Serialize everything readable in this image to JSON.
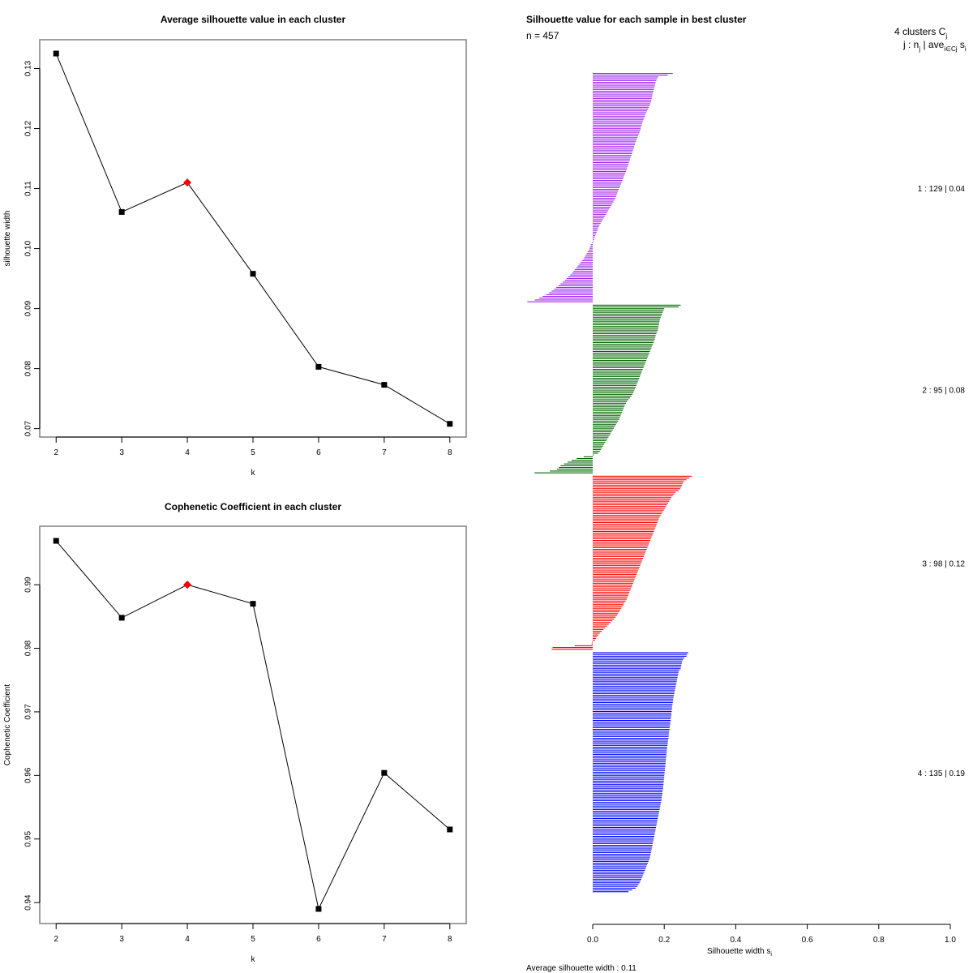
{
  "chart_data": [
    {
      "type": "line",
      "title": "Average silhouette value in each cluster",
      "xlabel": "k",
      "ylabel": "silhouette width",
      "x": [
        2,
        3,
        4,
        5,
        6,
        7,
        8
      ],
      "values": [
        0.1325,
        0.1061,
        0.111,
        0.0958,
        0.0803,
        0.0773,
        0.0708
      ],
      "highlight_k": 4,
      "highlight_color": "#FF0000",
      "marker_color": "#000000",
      "xticks": [
        "2",
        "3",
        "4",
        "5",
        "6",
        "7",
        "8"
      ],
      "yticks": [
        "0.07",
        "0.08",
        "0.09",
        "0.10",
        "0.11",
        "0.12",
        "0.13"
      ],
      "ytick_values": [
        0.07,
        0.08,
        0.09,
        0.1,
        0.11,
        0.12,
        0.13
      ],
      "xlim": [
        1.75,
        8.25
      ],
      "ylim": [
        0.0686,
        0.1348
      ],
      "grid": false
    },
    {
      "type": "line",
      "title": "Cophenetic Coefficient in each cluster",
      "xlabel": "k",
      "ylabel": "Cophenetic Coefficient",
      "x": [
        2,
        3,
        4,
        5,
        6,
        7,
        8
      ],
      "values": [
        0.9969,
        0.9848,
        0.99,
        0.987,
        0.939,
        0.9604,
        0.9515
      ],
      "highlight_k": 4,
      "highlight_color": "#FF0000",
      "marker_color": "#000000",
      "xticks": [
        "2",
        "3",
        "4",
        "5",
        "6",
        "7",
        "8"
      ],
      "yticks": [
        "0.94",
        "0.95",
        "0.96",
        "0.97",
        "0.98",
        "0.99"
      ],
      "ytick_values": [
        0.94,
        0.95,
        0.96,
        0.97,
        0.98,
        0.99
      ],
      "xlim": [
        1.75,
        8.25
      ],
      "ylim": [
        0.9367,
        0.9992
      ],
      "grid": false
    },
    {
      "type": "bar",
      "orientation": "horizontal",
      "title": "Silhouette value for each sample in best cluster",
      "n_label": "n = 457",
      "xlabel": "Silhouette width s",
      "xlabel_sub": "i",
      "xticks": [
        "0.0",
        "0.2",
        "0.4",
        "0.6",
        "0.8",
        "1.0"
      ],
      "xtick_values": [
        0,
        0.2,
        0.4,
        0.6,
        0.8,
        1.0
      ],
      "xlim": [
        -0.185,
        1.0
      ],
      "legend_header_1": "4  clusters  C",
      "legend_header_1_sub": "j",
      "legend_header_2": "j :  n",
      "legend_header_2_sub": "j",
      "legend_header_2_rest": " | ave",
      "legend_header_2_sub2": "i∈Cj",
      "legend_header_2_end": "  s",
      "legend_header_2_sub3": "i",
      "footer": "Average silhouette width :  0.11",
      "clusters": [
        {
          "label": "1 :   129  |  0.04",
          "n": 129,
          "avg": 0.04,
          "color": "#A020F0",
          "values": [
            0.224,
            0.21,
            0.183,
            0.18,
            0.178,
            0.176,
            0.175,
            0.174,
            0.172,
            0.171,
            0.17,
            0.168,
            0.167,
            0.166,
            0.165,
            0.164,
            0.163,
            0.161,
            0.159,
            0.157,
            0.155,
            0.152,
            0.15,
            0.147,
            0.146,
            0.144,
            0.142,
            0.14,
            0.138,
            0.137,
            0.135,
            0.134,
            0.133,
            0.131,
            0.129,
            0.127,
            0.125,
            0.123,
            0.121,
            0.119,
            0.118,
            0.116,
            0.115,
            0.113,
            0.111,
            0.11,
            0.108,
            0.106,
            0.104,
            0.103,
            0.101,
            0.1,
            0.098,
            0.096,
            0.095,
            0.093,
            0.091,
            0.089,
            0.087,
            0.085,
            0.083,
            0.081,
            0.079,
            0.077,
            0.075,
            0.073,
            0.071,
            0.069,
            0.067,
            0.065,
            0.063,
            0.061,
            0.058,
            0.055,
            0.052,
            0.049,
            0.046,
            0.043,
            0.04,
            0.037,
            0.034,
            0.031,
            0.028,
            0.025,
            0.022,
            0.019,
            0.017,
            0.015,
            0.013,
            0.011,
            0.009,
            0.007,
            0.005,
            0.004,
            0.002,
            -0.002,
            -0.005,
            -0.007,
            -0.009,
            -0.011,
            -0.014,
            -0.017,
            -0.02,
            -0.023,
            -0.026,
            -0.03,
            -0.034,
            -0.038,
            -0.042,
            -0.046,
            -0.05,
            -0.054,
            -0.058,
            -0.063,
            -0.068,
            -0.073,
            -0.078,
            -0.084,
            -0.09,
            -0.096,
            -0.102,
            -0.108,
            -0.115,
            -0.122,
            -0.13,
            -0.14,
            -0.15,
            -0.162,
            -0.183
          ]
        },
        {
          "label": "2 :   95  |  0.08",
          "n": 95,
          "avg": 0.08,
          "color": "#006400",
          "values": [
            0.246,
            0.24,
            0.2,
            0.198,
            0.196,
            0.194,
            0.192,
            0.19,
            0.188,
            0.187,
            0.186,
            0.185,
            0.184,
            0.183,
            0.182,
            0.18,
            0.178,
            0.176,
            0.175,
            0.174,
            0.172,
            0.17,
            0.168,
            0.166,
            0.164,
            0.162,
            0.16,
            0.158,
            0.156,
            0.154,
            0.152,
            0.15,
            0.148,
            0.146,
            0.144,
            0.142,
            0.14,
            0.138,
            0.136,
            0.134,
            0.132,
            0.13,
            0.128,
            0.126,
            0.124,
            0.122,
            0.12,
            0.118,
            0.116,
            0.114,
            0.111,
            0.108,
            0.104,
            0.1,
            0.096,
            0.093,
            0.09,
            0.088,
            0.086,
            0.084,
            0.082,
            0.08,
            0.078,
            0.076,
            0.074,
            0.071,
            0.068,
            0.065,
            0.062,
            0.059,
            0.056,
            0.053,
            0.05,
            0.047,
            0.044,
            0.041,
            0.038,
            0.035,
            0.032,
            0.029,
            0.026,
            0.023,
            0.02,
            0.015,
            0.003,
            -0.025,
            -0.045,
            -0.059,
            -0.07,
            -0.08,
            -0.09,
            -0.095,
            -0.1,
            -0.12,
            -0.163
          ]
        },
        {
          "label": "3 :   98  |  0.12",
          "n": 98,
          "avg": 0.12,
          "color": "#FF0000",
          "values": [
            0.277,
            0.27,
            0.262,
            0.255,
            0.252,
            0.25,
            0.248,
            0.245,
            0.24,
            0.232,
            0.228,
            0.224,
            0.22,
            0.217,
            0.214,
            0.211,
            0.208,
            0.205,
            0.202,
            0.199,
            0.196,
            0.193,
            0.19,
            0.187,
            0.185,
            0.183,
            0.181,
            0.179,
            0.177,
            0.175,
            0.173,
            0.171,
            0.169,
            0.167,
            0.165,
            0.163,
            0.161,
            0.159,
            0.157,
            0.155,
            0.153,
            0.151,
            0.149,
            0.147,
            0.145,
            0.143,
            0.141,
            0.139,
            0.137,
            0.135,
            0.133,
            0.131,
            0.129,
            0.127,
            0.125,
            0.123,
            0.121,
            0.119,
            0.117,
            0.115,
            0.113,
            0.111,
            0.109,
            0.107,
            0.105,
            0.103,
            0.101,
            0.099,
            0.097,
            0.095,
            0.092,
            0.089,
            0.086,
            0.083,
            0.08,
            0.077,
            0.074,
            0.071,
            0.068,
            0.064,
            0.06,
            0.055,
            0.05,
            0.045,
            0.04,
            0.035,
            0.03,
            0.025,
            0.02,
            0.016,
            0.012,
            0.009,
            0.006,
            -0.002,
            -0.003,
            -0.05,
            -0.112,
            -0.115
          ]
        },
        {
          "label": "4 :   135  |  0.19",
          "n": 135,
          "avg": 0.19,
          "color": "#0000FF",
          "values": [
            0.267,
            0.264,
            0.262,
            0.256,
            0.252,
            0.25,
            0.249,
            0.248,
            0.247,
            0.246,
            0.242,
            0.24,
            0.239,
            0.238,
            0.237,
            0.236,
            0.235,
            0.234,
            0.233,
            0.232,
            0.231,
            0.23,
            0.229,
            0.228,
            0.227,
            0.226,
            0.225,
            0.225,
            0.224,
            0.223,
            0.222,
            0.222,
            0.221,
            0.221,
            0.22,
            0.22,
            0.219,
            0.218,
            0.218,
            0.217,
            0.217,
            0.216,
            0.215,
            0.215,
            0.214,
            0.213,
            0.213,
            0.212,
            0.212,
            0.211,
            0.21,
            0.21,
            0.209,
            0.208,
            0.208,
            0.207,
            0.207,
            0.206,
            0.206,
            0.205,
            0.205,
            0.204,
            0.204,
            0.203,
            0.203,
            0.202,
            0.202,
            0.201,
            0.201,
            0.2,
            0.2,
            0.199,
            0.199,
            0.198,
            0.198,
            0.197,
            0.197,
            0.196,
            0.195,
            0.195,
            0.194,
            0.193,
            0.193,
            0.192,
            0.191,
            0.19,
            0.189,
            0.188,
            0.187,
            0.186,
            0.185,
            0.184,
            0.183,
            0.182,
            0.181,
            0.18,
            0.179,
            0.178,
            0.177,
            0.176,
            0.175,
            0.174,
            0.173,
            0.172,
            0.171,
            0.17,
            0.169,
            0.168,
            0.167,
            0.166,
            0.165,
            0.164,
            0.163,
            0.162,
            0.161,
            0.16,
            0.158,
            0.156,
            0.154,
            0.152,
            0.15,
            0.148,
            0.146,
            0.144,
            0.142,
            0.14,
            0.138,
            0.136,
            0.134,
            0.131,
            0.128,
            0.125,
            0.12,
            0.11,
            0.1
          ]
        }
      ]
    }
  ]
}
